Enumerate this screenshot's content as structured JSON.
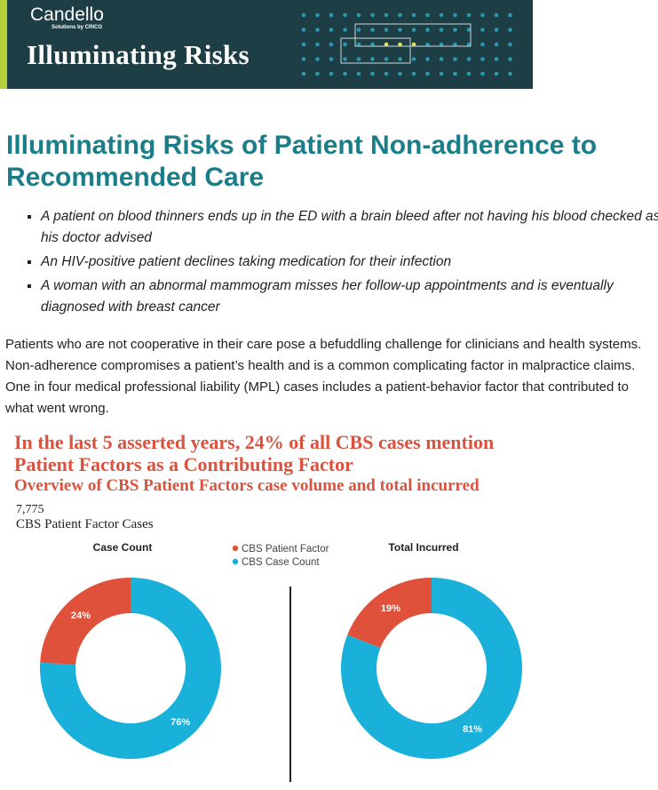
{
  "header": {
    "logo": "Candello",
    "logo_tagline": "Solutions by CRICO",
    "title": "Illuminating Risks"
  },
  "article": {
    "heading": "Illuminating Risks of Patient Non-adherence to Recommended Care",
    "bullets": [
      "A patient on blood thinners ends up in the ED with a brain bleed after not having his blood checked as his doctor advised",
      "An HIV-positive patient declines taking medication for their infection",
      "A woman with an abnormal mammogram misses her follow-up appointments and is eventually diagnosed with breast cancer"
    ],
    "paragraph": "Patients who are not cooperative in their care pose a befuddling challenge for clinicians and health systems. Non-adherence compromises a patient’s health and is a common complicating factor in malpractice claims. One in four medical professional liability (MPL) cases includes a patient-behavior factor that contributed to what went wrong."
  },
  "infographic": {
    "title_line1": "In the last 5 asserted years, 24% of all CBS cases mention",
    "title_line2": "Patient Factors as a Contributing Factor",
    "subtitle": "Overview of CBS Patient Factors case volume and total incurred",
    "count": "7,775",
    "count_label": "CBS Patient Factor Cases"
  },
  "legend": {
    "categories": [
      "CBS Patient Factor",
      "CBS Case Count"
    ],
    "colors": [
      "#e0513b",
      "#19b0d9"
    ]
  },
  "chart_data": [
    {
      "type": "pie",
      "donut": true,
      "title": "Case Count",
      "values": [
        24,
        76
      ],
      "value_labels": [
        "24%",
        "76%"
      ]
    },
    {
      "type": "pie",
      "donut": true,
      "title": "Total Incurred",
      "values": [
        19,
        81
      ],
      "value_labels": [
        "19%",
        "81%"
      ]
    }
  ]
}
